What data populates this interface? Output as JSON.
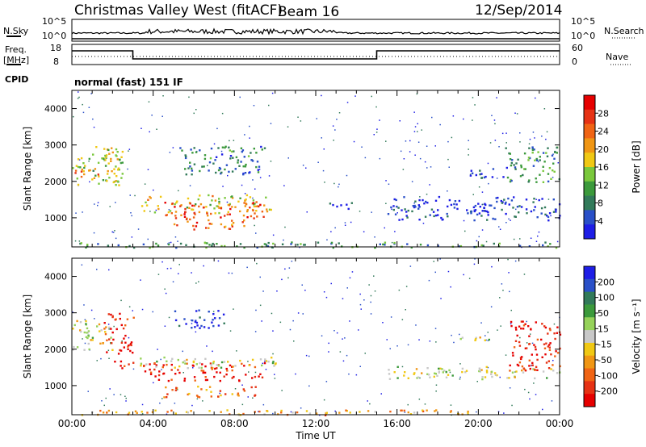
{
  "header": {
    "title": "Christmas Valley West (fitACF)",
    "beam": "Beam 16",
    "date": "12/Sep/2014"
  },
  "noise_panel": {
    "left_label": "N.Sky",
    "left_ticks": [
      "10^5",
      "10^0"
    ],
    "right_ticks": [
      "10^5",
      "10^0"
    ],
    "right_label": "N.Search"
  },
  "freq_panel": {
    "left_label_1": "Freq.",
    "left_label_2": "[MHz]",
    "left_ticks": [
      "18",
      "8"
    ],
    "right_ticks": [
      "60",
      "0"
    ],
    "right_label": "Nave",
    "cpid_label": "CPID",
    "cpid_text": "normal (fast) 151 IF"
  },
  "colors": {
    "power": [
      "#1e1ee6",
      "#2a50c8",
      "#327a5a",
      "#3c9a3c",
      "#7ac83c",
      "#f0c814",
      "#f09614",
      "#f06414",
      "#e63214",
      "#e60000"
    ],
    "velocity": [
      "#1e1ee6",
      "#2a50c8",
      "#327a5a",
      "#3c9a3c",
      "#96d25a",
      "#c8c8c8",
      "#f0c814",
      "#f09614",
      "#f06414",
      "#e63214",
      "#e60000"
    ]
  },
  "chart_data": [
    {
      "type": "heatmap",
      "quantity": "power",
      "ylabel": "Slant Range [km]",
      "yticks": [
        1000,
        2000,
        3000,
        4000
      ],
      "ylim": [
        200,
        4500
      ],
      "xlim": [
        0,
        24
      ],
      "colorbar_label": "Power [dB]",
      "colorbar_ticks": [
        "4",
        "8",
        "12",
        "16",
        "20",
        "24",
        "28"
      ],
      "colorbar_range": [
        0,
        30
      ],
      "regions": [
        {
          "t0": 3.4,
          "t1": 9.8,
          "r0": 1150,
          "r1": 1650,
          "level": 0.55
        },
        {
          "t0": 4.5,
          "t1": 9.5,
          "r0": 1000,
          "r1": 1450,
          "level": 0.8
        },
        {
          "t0": 5.0,
          "t1": 8.5,
          "r0": 700,
          "r1": 1000,
          "level": 0.75
        },
        {
          "t0": 0.0,
          "t1": 2.5,
          "r0": 1900,
          "r1": 2800,
          "level": 0.45
        },
        {
          "t0": 0.0,
          "t1": 1.3,
          "r0": 2100,
          "r1": 2400,
          "level": 0.8
        },
        {
          "t0": 1.0,
          "t1": 2.6,
          "r0": 2500,
          "r1": 3000,
          "level": 0.5
        },
        {
          "t0": 5.2,
          "t1": 9.5,
          "r0": 2200,
          "r1": 3000,
          "level": 0.25
        },
        {
          "t0": 12.6,
          "t1": 14.0,
          "r0": 1250,
          "r1": 1450,
          "level": 0.1
        },
        {
          "t0": 15.5,
          "t1": 24.0,
          "r0": 950,
          "r1": 1600,
          "level": 0.1
        },
        {
          "t0": 19.5,
          "t1": 21.5,
          "r0": 2100,
          "r1": 2400,
          "level": 0.12
        },
        {
          "t0": 21.3,
          "t1": 24.0,
          "r0": 2000,
          "r1": 3000,
          "level": 0.3
        },
        {
          "t0": 0.0,
          "t1": 24.0,
          "r0": 200,
          "r1": 350,
          "level": 0.3
        }
      ],
      "xticks": []
    },
    {
      "type": "heatmap",
      "quantity": "velocity",
      "xlabel": "Time UT",
      "ylabel": "Slant Range [km]",
      "yticks": [
        1000,
        2000,
        3000,
        4000
      ],
      "ylim": [
        200,
        4500
      ],
      "xlim": [
        0,
        24
      ],
      "xticks": [
        "00:00",
        "04:00",
        "08:00",
        "12:00",
        "16:00",
        "20:00",
        "00:00"
      ],
      "colorbar_label": "Velocity [m s⁻¹]",
      "colorbar_ticks": [
        "200",
        "100",
        "50",
        "15",
        "-15",
        "-50",
        "-100",
        "-200"
      ],
      "colorbar_range": [
        -250,
        250
      ],
      "regions": [
        {
          "t0": 0.0,
          "t1": 2.0,
          "r0": 2000,
          "r1": 2800,
          "level": 0.5
        },
        {
          "t0": 1.5,
          "t1": 3.0,
          "r0": 1900,
          "r1": 3000,
          "level": 0.9
        },
        {
          "t0": 2.0,
          "t1": 3.5,
          "r0": 1500,
          "r1": 1700,
          "level": 0.9
        },
        {
          "t0": 3.5,
          "t1": 9.5,
          "r0": 1150,
          "r1": 1650,
          "level": 0.9
        },
        {
          "t0": 3.0,
          "t1": 10.0,
          "r0": 1500,
          "r1": 1800,
          "level": 0.5
        },
        {
          "t0": 4.5,
          "t1": 9.0,
          "r0": 700,
          "r1": 1000,
          "level": 0.72
        },
        {
          "t0": 5.0,
          "t1": 7.5,
          "r0": 2600,
          "r1": 3100,
          "level": 0.05
        },
        {
          "t0": 15.5,
          "t1": 24.0,
          "r0": 1200,
          "r1": 1550,
          "level": 0.5
        },
        {
          "t0": 19.0,
          "t1": 21.0,
          "r0": 2200,
          "r1": 2350,
          "level": 0.5
        },
        {
          "t0": 21.5,
          "t1": 24.0,
          "r0": 1400,
          "r1": 2800,
          "level": 0.9
        },
        {
          "t0": 0.0,
          "t1": 20.0,
          "r0": 200,
          "r1": 350,
          "level": 0.66
        }
      ]
    }
  ]
}
